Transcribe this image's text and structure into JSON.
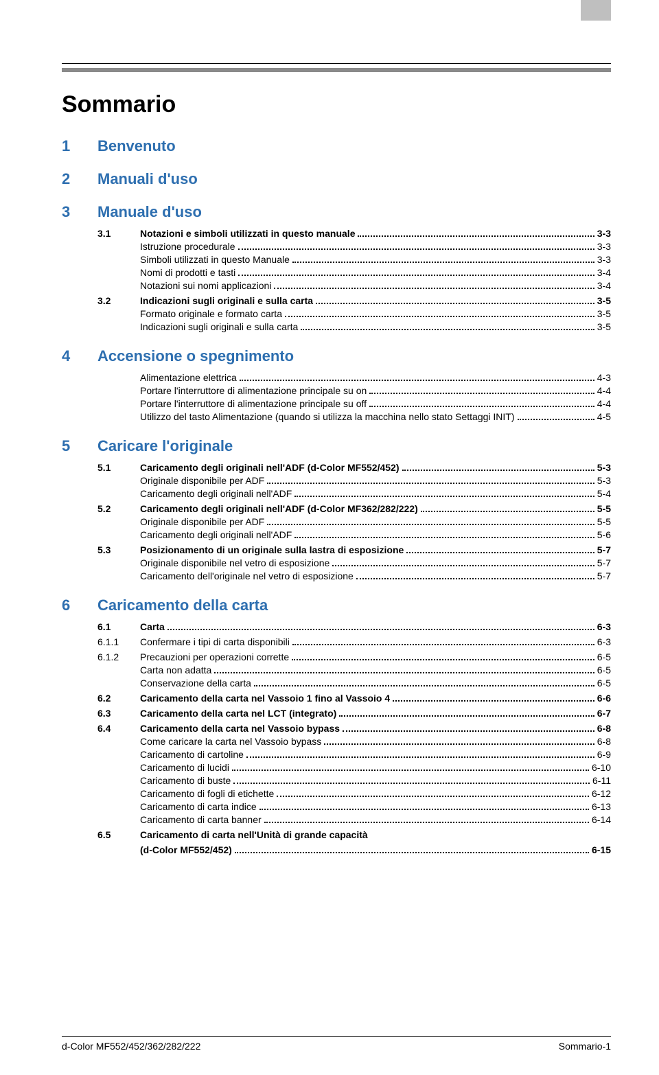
{
  "page_title": "Sommario",
  "footer_left": "d-Color MF552/452/362/282/222",
  "footer_right": "Sommario-1",
  "chapters": [
    {
      "num": "1",
      "title": "Benvenuto",
      "sections": []
    },
    {
      "num": "2",
      "title": "Manuali d'uso",
      "sections": []
    },
    {
      "num": "3",
      "title": "Manuale d'uso",
      "sections": [
        {
          "num": "3.1",
          "title": "Notazioni e simboli utilizzati in questo manuale",
          "page": "3-3",
          "subs": [
            {
              "title": "Istruzione procedurale",
              "page": "3-3"
            },
            {
              "title": "Simboli utilizzati in questo Manuale",
              "page": "3-3"
            },
            {
              "title": "Nomi di prodotti e tasti",
              "page": "3-4"
            },
            {
              "title": "Notazioni sui nomi applicazioni",
              "page": "3-4"
            }
          ]
        },
        {
          "num": "3.2",
          "title": "Indicazioni sugli originali e sulla carta",
          "page": "3-5",
          "subs": [
            {
              "title": "Formato originale e formato carta",
              "page": "3-5"
            },
            {
              "title": "Indicazioni sugli originali e sulla carta",
              "page": "3-5"
            }
          ]
        }
      ]
    },
    {
      "num": "4",
      "title": "Accensione o spegnimento",
      "sections": [
        {
          "num": "",
          "title": "",
          "page": "",
          "subs": [
            {
              "title": "Alimentazione elettrica",
              "page": "4-3"
            },
            {
              "title": "Portare l'interruttore di alimentazione principale su on",
              "page": "4-4"
            },
            {
              "title": "Portare l'interruttore di alimentazione principale su off",
              "page": "4-4"
            },
            {
              "title": "Utilizzo del tasto Alimentazione (quando si utilizza la macchina nello stato Settaggi INIT)",
              "page": "4-5"
            }
          ]
        }
      ]
    },
    {
      "num": "5",
      "title": "Caricare l'originale",
      "sections": [
        {
          "num": "5.1",
          "title": "Caricamento degli originali nell'ADF (d-Color MF552/452)",
          "page": "5-3",
          "subs": [
            {
              "title": "Originale disponibile per ADF",
              "page": "5-3"
            },
            {
              "title": "Caricamento degli originali nell'ADF",
              "page": "5-4"
            }
          ]
        },
        {
          "num": "5.2",
          "title": "Caricamento degli originali nell'ADF (d-Color MF362/282/222)",
          "page": "5-5",
          "subs": [
            {
              "title": "Originale disponibile per ADF",
              "page": "5-5"
            },
            {
              "title": "Caricamento degli originali nell'ADF",
              "page": "5-6"
            }
          ]
        },
        {
          "num": "5.3",
          "title": "Posizionamento di un originale sulla lastra di esposizione",
          "page": "5-7",
          "subs": [
            {
              "title": "Originale disponibile nel vetro di esposizione",
              "page": "5-7"
            },
            {
              "title": "Caricamento dell'originale nel vetro di esposizione",
              "page": "5-7"
            }
          ]
        }
      ]
    },
    {
      "num": "6",
      "title": "Caricamento della carta",
      "sections": [
        {
          "num": "6.1",
          "title": "Carta",
          "page": "6-3",
          "subs": []
        },
        {
          "num": "6.1.1",
          "title": "Confermare i tipi di carta disponibili",
          "page": "6-3",
          "light": true,
          "subs": []
        },
        {
          "num": "6.1.2",
          "title": "Precauzioni per operazioni corrette",
          "page": "6-5",
          "light": true,
          "subs": [
            {
              "title": "Carta non adatta",
              "page": "6-5"
            },
            {
              "title": "Conservazione della carta",
              "page": "6-5"
            }
          ]
        },
        {
          "num": "6.2",
          "title": "Caricamento della carta nel Vassoio 1 fino al Vassoio 4",
          "page": "6-6",
          "subs": []
        },
        {
          "num": "6.3",
          "title": "Caricamento della carta nel LCT (integrato)",
          "page": "6-7",
          "subs": []
        },
        {
          "num": "6.4",
          "title": "Caricamento della carta nel Vassoio bypass",
          "page": "6-8",
          "subs": [
            {
              "title": "Come caricare la carta nel Vassoio bypass",
              "page": "6-8"
            },
            {
              "title": "Caricamento di cartoline",
              "page": "6-9"
            },
            {
              "title": "Caricamento di lucidi",
              "page": "6-10"
            },
            {
              "title": "Caricamento di buste",
              "page": "6-11"
            },
            {
              "title": "Caricamento di fogli di etichette",
              "page": "6-12"
            },
            {
              "title": "Caricamento di carta indice",
              "page": "6-13"
            },
            {
              "title": "Caricamento di carta banner",
              "page": "6-14"
            }
          ]
        },
        {
          "num": "6.5",
          "title_line1": "Caricamento di carta nell'Unità di grande capacità",
          "title_line2": "(d-Color MF552/452)",
          "page": "6-15",
          "subs": [],
          "multiline": true
        }
      ]
    }
  ]
}
